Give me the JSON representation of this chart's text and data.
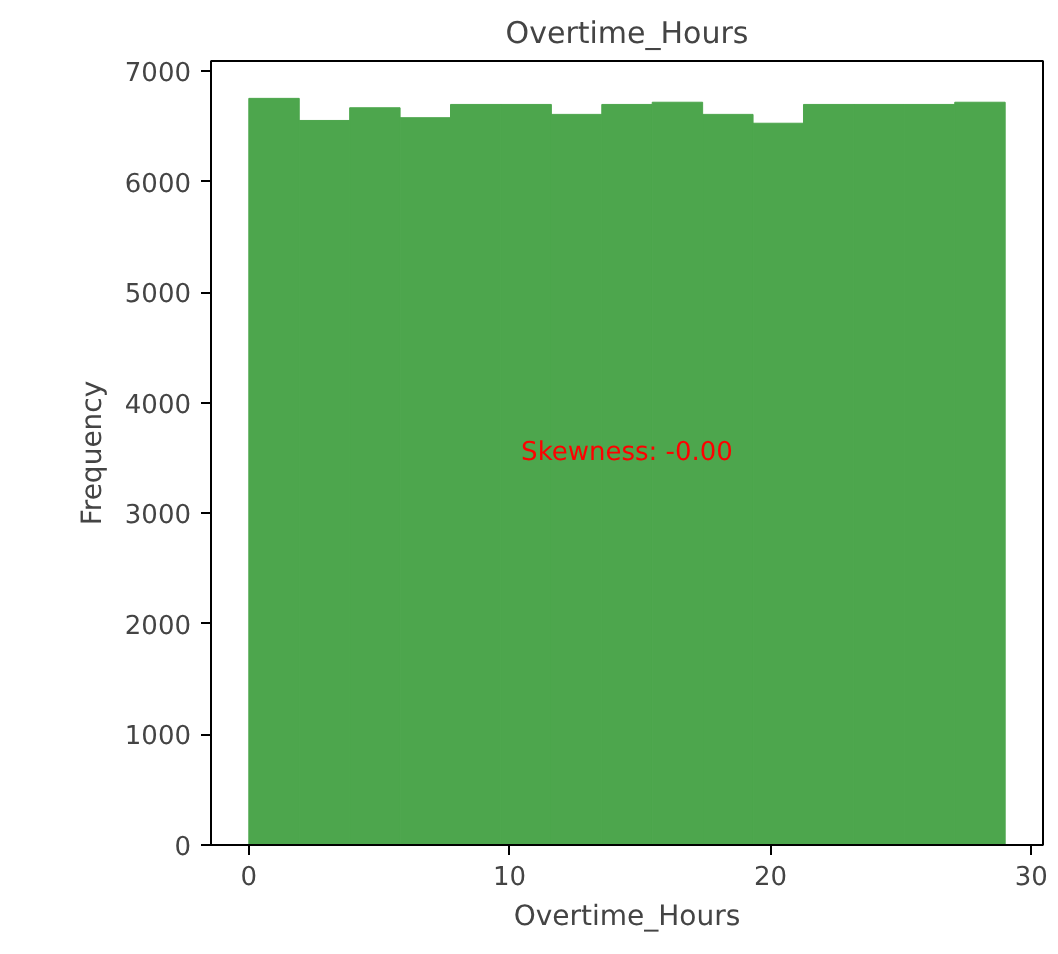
{
  "chart_data": {
    "type": "histogram",
    "title": "Overtime_Hours",
    "xlabel": "Overtime_Hours",
    "ylabel": "Frequency",
    "bins": [
      0,
      1.9333,
      3.8667,
      5.8,
      7.7333,
      9.6667,
      11.6,
      13.5333,
      15.4667,
      17.4,
      19.3333,
      21.2667,
      23.2,
      25.1333,
      27.0667,
      29
    ],
    "values": [
      6755,
      6555,
      6670,
      6580,
      6700,
      6700,
      6610,
      6700,
      6720,
      6610,
      6530,
      6700,
      6700,
      6700,
      6720
    ],
    "color": "#4da64d",
    "xlim": [
      -1.45,
      30.45
    ],
    "xticks": [
      0,
      10,
      20,
      30
    ],
    "ylim": [
      0,
      7093
    ],
    "yticks": [
      0,
      1000,
      2000,
      3000,
      4000,
      5000,
      6000,
      7000
    ],
    "grid": false,
    "annotations": [
      "Skewness: -0.00"
    ]
  }
}
